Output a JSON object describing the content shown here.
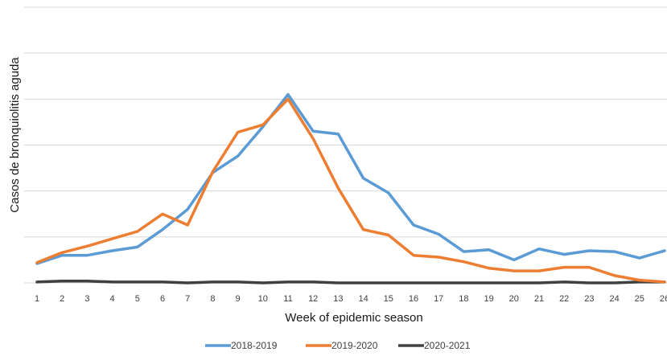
{
  "chart_data": {
    "type": "line",
    "xlabel": "Week of epidemic season",
    "ylabel": "Casos de bronquiolitis aguda",
    "categories": [
      "1",
      "2",
      "3",
      "4",
      "5",
      "6",
      "7",
      "8",
      "9",
      "10",
      "11",
      "12",
      "13",
      "14",
      "15",
      "16",
      "17",
      "18",
      "19",
      "20",
      "21",
      "22",
      "23",
      "24",
      "25",
      "26"
    ],
    "ylim": [
      0,
      300
    ],
    "grid": true,
    "legend": "bottom",
    "series": [
      {
        "name": "2018-2019",
        "color": "#5b9bd5",
        "values": [
          21,
          30,
          30,
          35,
          39,
          58,
          80,
          120,
          138,
          170,
          205,
          165,
          162,
          114,
          98,
          63,
          53,
          34,
          36,
          25,
          37,
          31,
          35,
          34,
          27,
          35
        ]
      },
      {
        "name": "2019-2020",
        "color": "#ed7d31",
        "values": [
          22,
          33,
          40,
          48,
          56,
          75,
          63,
          121,
          164,
          172,
          200,
          157,
          103,
          58,
          52,
          30,
          28,
          23,
          16,
          13,
          13,
          17,
          17,
          8,
          3,
          1
        ]
      },
      {
        "name": "2020-2021",
        "color": "#404040",
        "values": [
          1,
          2,
          2,
          1,
          1,
          1,
          0,
          1,
          1,
          0,
          1,
          1,
          0,
          0,
          0,
          0,
          0,
          0,
          0,
          0,
          0,
          1,
          0,
          0,
          1,
          1
        ]
      }
    ]
  }
}
